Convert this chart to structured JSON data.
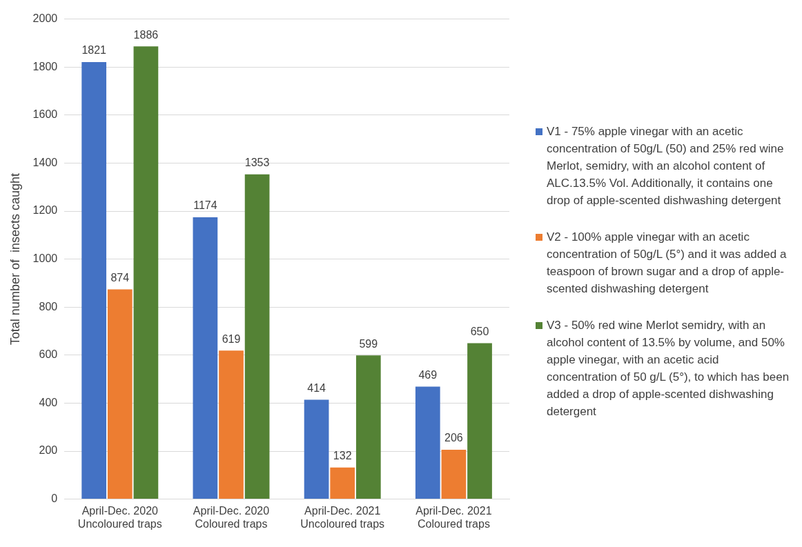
{
  "chart_data": {
    "type": "bar",
    "ylabel": "Total number of  insects caught",
    "categories": [
      "April-Dec. 2020 Uncoloured traps",
      "April-Dec. 2020 Coloured traps",
      "April-Dec. 2021 Uncoloured traps",
      "April-Dec. 2021 Coloured traps"
    ],
    "series": [
      {
        "name": "V1 - 75% apple vinegar with an acetic concentration of 50g/L (50) and 25% red wine Merlot, semidry, with an alcohol content of ALC.13.5% Vol. Additionally, it contains one drop of apple-scented dishwashing detergent",
        "color": "#4472c4",
        "values": [
          1821,
          1174,
          414,
          469
        ]
      },
      {
        "name": "V2 - 100% apple vinegar with an acetic concentration of 50g/L (5°) and it was added a teaspoon of brown sugar  and a drop of apple-scented dishwashing detergent",
        "color": "#ed7d31",
        "values": [
          874,
          619,
          132,
          206
        ]
      },
      {
        "name": "V3 - 50% red wine Merlot semidry, with an alcohol content of 13.5% by volume, and 50% apple vinegar, with an acetic acid concentration of 50 g/L (5°), to which has been added a drop of apple-scented dishwashing detergent",
        "color": "#548235",
        "values": [
          1886,
          1353,
          599,
          650
        ]
      }
    ],
    "ylim": [
      0,
      2000
    ],
    "yticks": [
      0,
      200,
      400,
      600,
      800,
      1000,
      1200,
      1400,
      1600,
      1800,
      2000
    ],
    "grid": "y",
    "legend": "right",
    "data_labels": true
  }
}
